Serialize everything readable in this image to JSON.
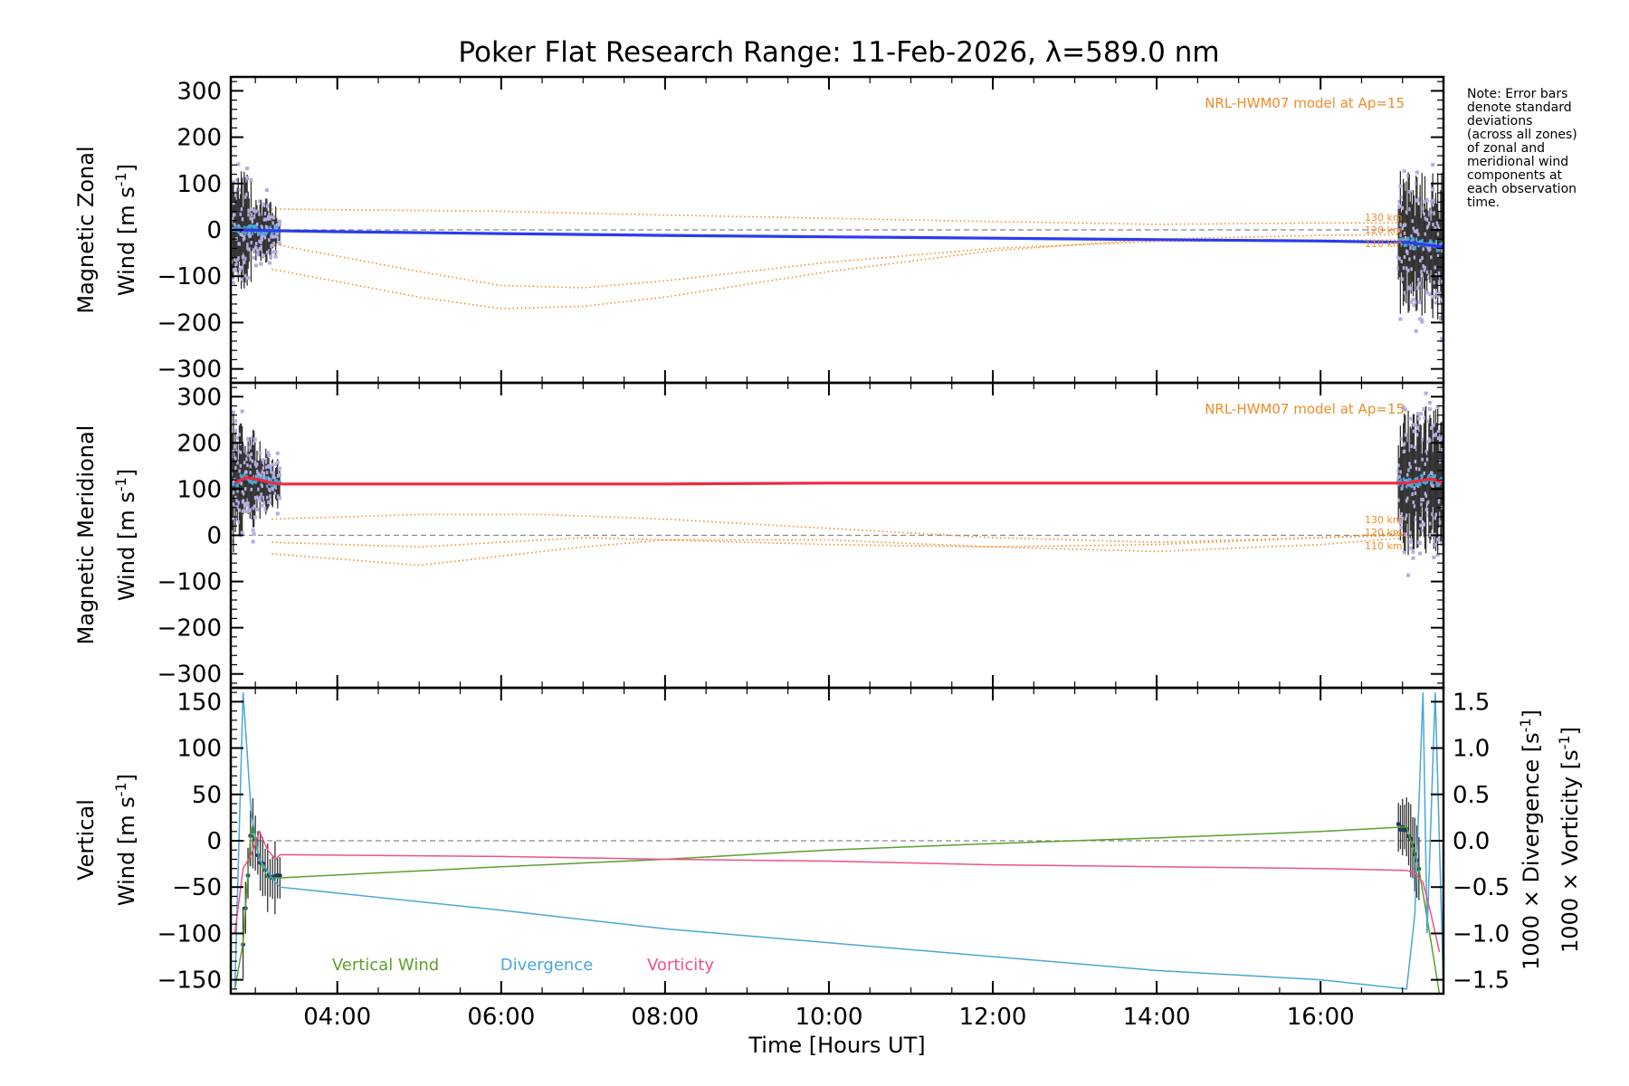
{
  "title": "Poker Flat Research Range: 11-Feb-2026, λ=589.0 nm",
  "note_lines": [
    "Note: Error bars",
    "denote standard",
    "deviations",
    "(across all zones)",
    "of zonal and",
    "meridional wind",
    "components at",
    "each observation",
    "time."
  ],
  "model_label": "NRL-HWM07 model at Ap=15",
  "altitude_labels": [
    "130 km",
    "120 km",
    "110 km"
  ],
  "colors": {
    "zonal": "#2a3cf0",
    "meridional": "#f0283c",
    "vertical": "#5aa02c",
    "divergence": "#4aa6d6",
    "vorticity": "#f0508a",
    "model": "#f08c28",
    "errorbar": "#333333",
    "scatter": "#b4aee0"
  },
  "chart_data": [
    {
      "type": "line",
      "panel": "zonal",
      "ylabel_line1": "Magnetic Zonal",
      "ylabel_line2": "Wind",
      "ylabel_units": "[m s",
      "ylabel_units_sup": "-1",
      "ylabel_units_close": "]",
      "xlim": [
        2.7,
        17.5
      ],
      "ylim": [
        -330,
        330
      ],
      "yticks": [
        300,
        200,
        100,
        0,
        -100,
        -200,
        -300
      ],
      "ytick_labels": [
        "300",
        "200",
        "100",
        "0",
        "−100",
        "−200",
        "−300"
      ],
      "series": [
        {
          "name": "Zonal Wind",
          "x": [
            2.75,
            3.3,
            4.0,
            6.0,
            8.0,
            10.0,
            12.0,
            14.0,
            16.0,
            17.05,
            17.5
          ],
          "y": [
            0,
            -2,
            -4,
            -8,
            -12,
            -15,
            -18,
            -21,
            -24,
            -27,
            -37
          ]
        },
        {
          "name": "HWM07 130 km",
          "x": [
            3.2,
            6.0,
            8.0,
            10.0,
            12.0,
            14.0,
            16.0,
            17.05
          ],
          "y": [
            45,
            40,
            32,
            25,
            18,
            12,
            15,
            15
          ]
        },
        {
          "name": "HWM07 120 km",
          "x": [
            3.2,
            5.0,
            6.0,
            7.0,
            8.0,
            10.0,
            12.0,
            14.0,
            16.0,
            17.05
          ],
          "y": [
            -30,
            -90,
            -120,
            -125,
            -110,
            -70,
            -40,
            -25,
            -22,
            -22
          ]
        },
        {
          "name": "HWM07 110 km",
          "x": [
            3.2,
            5.0,
            6.0,
            7.0,
            8.0,
            10.0,
            12.0,
            14.0,
            16.0,
            17.05
          ],
          "y": [
            -85,
            -145,
            -170,
            -165,
            -145,
            -90,
            -45,
            -20,
            -12,
            -10
          ]
        }
      ]
    },
    {
      "type": "line",
      "panel": "meridional",
      "ylabel_line1": "Magnetic Meridional",
      "ylabel_line2": "Wind",
      "ylabel_units": "[m s",
      "ylabel_units_sup": "-1",
      "ylabel_units_close": "]",
      "xlim": [
        2.7,
        17.5
      ],
      "ylim": [
        -330,
        330
      ],
      "yticks": [
        300,
        200,
        100,
        0,
        -100,
        -200,
        -300
      ],
      "ytick_labels": [
        "300",
        "200",
        "100",
        "0",
        "−100",
        "−200",
        "−300"
      ],
      "series": [
        {
          "name": "Meridional Wind",
          "x": [
            2.75,
            2.9,
            3.05,
            3.2,
            3.3,
            8.0,
            10.0,
            14.0,
            17.05,
            17.2,
            17.35,
            17.5
          ],
          "y": [
            115,
            125,
            120,
            113,
            111,
            111,
            113,
            113,
            113,
            118,
            122,
            114
          ]
        },
        {
          "name": "HWM07 130 km",
          "x": [
            3.2,
            5.0,
            6.5,
            8.0,
            10.0,
            12.0,
            14.0,
            16.0,
            17.05
          ],
          "y": [
            35,
            45,
            45,
            35,
            15,
            -5,
            -15,
            -5,
            5
          ]
        },
        {
          "name": "HWM07 120 km",
          "x": [
            3.2,
            5.0,
            7.0,
            8.0,
            10.0,
            12.0,
            14.0,
            16.0,
            17.05
          ],
          "y": [
            -15,
            -25,
            -5,
            -10,
            -20,
            -25,
            -20,
            -5,
            0
          ]
        },
        {
          "name": "HWM07 110 km",
          "x": [
            3.2,
            5.0,
            7.0,
            8.0,
            10.0,
            12.0,
            14.0,
            16.0,
            17.05
          ],
          "y": [
            -40,
            -65,
            -25,
            -10,
            -10,
            -25,
            -35,
            -20,
            -5
          ]
        }
      ]
    },
    {
      "type": "line",
      "panel": "vertical",
      "ylabel_line1": "Vertical",
      "ylabel_line2": "Wind",
      "ylabel_units": "[m s",
      "ylabel_units_sup": "-1",
      "ylabel_units_close": "]",
      "right_label_1": "1000 × Divergence [s",
      "right_label_2": "1000 × Vorticity [s",
      "right_label_sup": "-1",
      "right_label_close": "]",
      "xlim": [
        2.7,
        17.5
      ],
      "ylim": [
        -165,
        165
      ],
      "yticks": [
        150,
        100,
        50,
        0,
        -50,
        -100,
        -150
      ],
      "ytick_labels": [
        "150",
        "100",
        "50",
        "0",
        "−50",
        "−100",
        "−150"
      ],
      "ylim_right": [
        -1.65,
        1.65
      ],
      "yticks_right": [
        1.5,
        1.0,
        0.5,
        0.0,
        -0.5,
        -1.0,
        -1.5
      ],
      "ytick_labels_right": [
        "1.5",
        "1.0",
        "0.5",
        "0.0",
        "−0.5",
        "−1.0",
        "−1.5"
      ],
      "xticks": [
        4,
        6,
        8,
        10,
        12,
        14,
        16
      ],
      "xtick_labels": [
        "04:00",
        "06:00",
        "08:00",
        "10:00",
        "12:00",
        "14:00",
        "16:00"
      ],
      "xlabel": "Time [Hours UT]",
      "legend": [
        "Vertical Wind",
        "Divergence",
        "Vorticity"
      ],
      "series": [
        {
          "name": "Vertical Wind",
          "x": [
            2.75,
            2.85,
            2.95,
            3.05,
            3.15,
            3.3,
            6.0,
            8.0,
            10.0,
            12.0,
            14.0,
            16.0,
            17.05,
            17.2,
            17.35,
            17.45
          ],
          "y": [
            -160,
            -110,
            15,
            -20,
            -40,
            -40,
            -28,
            -20,
            -10,
            -3,
            3,
            10,
            15,
            -30,
            -110,
            -165
          ]
        },
        {
          "name": "Divergence",
          "x": [
            2.75,
            2.85,
            2.95,
            3.05,
            3.2,
            3.3,
            6.0,
            8.0,
            10.0,
            12.0,
            14.0,
            16.0,
            17.05,
            17.15,
            17.25,
            17.3,
            17.4,
            17.5
          ],
          "y": [
            -1.6,
            1.6,
            0.3,
            -0.2,
            -0.4,
            -0.5,
            -0.75,
            -0.95,
            -1.1,
            -1.25,
            -1.4,
            -1.5,
            -1.6,
            -0.8,
            1.6,
            -1.0,
            1.6,
            -1.6
          ]
        },
        {
          "name": "Vorticity",
          "x": [
            2.75,
            2.85,
            2.95,
            3.05,
            3.15,
            3.25,
            3.3,
            6.0,
            8.0,
            10.0,
            12.0,
            14.0,
            16.0,
            17.05,
            17.15,
            17.25,
            17.35,
            17.45
          ],
          "y": [
            -1.0,
            -0.3,
            -0.15,
            0.1,
            -0.1,
            -0.2,
            -0.15,
            -0.17,
            -0.2,
            -0.22,
            -0.26,
            -0.28,
            -0.3,
            -0.32,
            -0.35,
            -0.45,
            -0.8,
            -1.2
          ]
        },
        {
          "name": "Zero line",
          "x": [
            2.7,
            17.5
          ],
          "y": [
            0,
            0
          ]
        }
      ]
    }
  ]
}
